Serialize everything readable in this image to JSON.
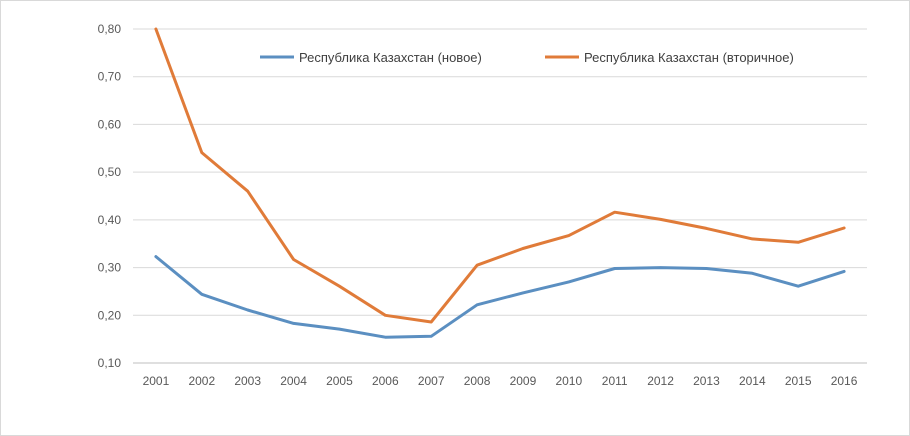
{
  "chart_data": {
    "type": "line",
    "title": "",
    "xlabel": "",
    "ylabel": "",
    "categories": [
      "2001",
      "2002",
      "2003",
      "2004",
      "2005",
      "2006",
      "2007",
      "2008",
      "2009",
      "2010",
      "2011",
      "2012",
      "2013",
      "2014",
      "2015",
      "2016"
    ],
    "y_ticks": [
      "0,10",
      "0,20",
      "0,30",
      "0,40",
      "0,50",
      "0,60",
      "0,70",
      "0,80"
    ],
    "ylim": [
      0.1,
      0.8
    ],
    "grid": true,
    "legend_position": "top-center",
    "series": [
      {
        "name": "Республика Казахстан (новое)",
        "color": "#5b8fc1",
        "values": [
          0.323,
          0.244,
          0.211,
          0.183,
          0.171,
          0.154,
          0.156,
          0.222,
          0.247,
          0.27,
          0.298,
          0.3,
          0.298,
          0.288,
          0.261,
          0.292
        ]
      },
      {
        "name": "Республика Казахстан (вторичное)",
        "color": "#e07b39",
        "values": [
          0.8,
          0.541,
          0.46,
          0.317,
          0.261,
          0.2,
          0.186,
          0.305,
          0.34,
          0.367,
          0.416,
          0.401,
          0.382,
          0.36,
          0.353,
          0.383
        ]
      }
    ]
  }
}
